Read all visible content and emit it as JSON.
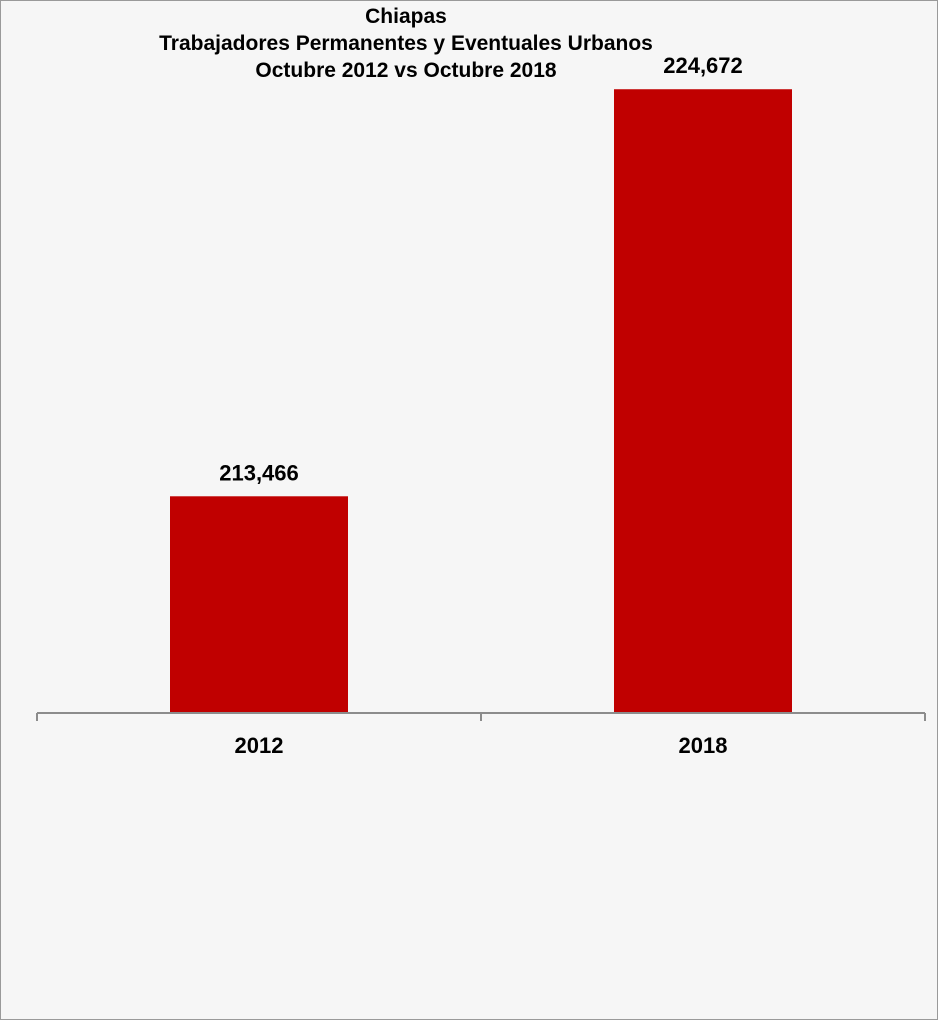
{
  "chart_data": {
    "type": "bar",
    "title_lines": [
      "Chiapas",
      "Trabajadores Permanentes y Eventuales Urbanos",
      "Octubre 2012 vs Octubre 2018"
    ],
    "categories": [
      "2012",
      "2018"
    ],
    "values": [
      213466,
      224672
    ],
    "data_labels": [
      "213,466",
      "224,672"
    ],
    "ylim": [
      207500,
      226000
    ],
    "xlabel": "",
    "ylabel": "",
    "grid": false,
    "legend": "none",
    "bar_color": "#c00000"
  }
}
